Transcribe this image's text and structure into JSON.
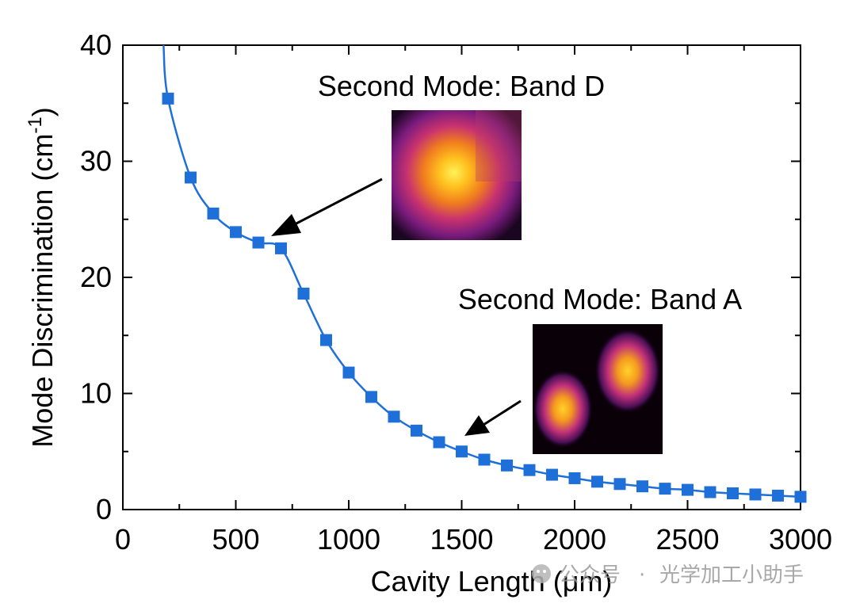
{
  "chart_data": {
    "type": "line",
    "xlabel": "Cavity Length (μm)",
    "ylabel_main": "Mode Discrimination (cm",
    "ylabel_sup": "-1",
    "ylabel_close": ")",
    "xlim": [
      0,
      3000
    ],
    "ylim": [
      0,
      40
    ],
    "xticks": [
      0,
      500,
      1000,
      1500,
      2000,
      2500,
      3000
    ],
    "yticks": [
      0,
      10,
      20,
      30,
      40
    ],
    "grid": false,
    "line_color": "#1f6fd9",
    "marker_color": "#1f6fd9",
    "series": [
      {
        "name": "Mode Discrimination",
        "marker": "square",
        "x": [
          200,
          300,
          400,
          500,
          600,
          700,
          800,
          900,
          1000,
          1100,
          1200,
          1300,
          1400,
          1500,
          1600,
          1700,
          1800,
          1900,
          2000,
          2100,
          2200,
          2300,
          2400,
          2500,
          2600,
          2700,
          2800,
          2900,
          3000
        ],
        "y": [
          35.4,
          28.6,
          25.5,
          23.9,
          23.0,
          22.5,
          18.6,
          14.6,
          11.8,
          9.7,
          8.0,
          6.8,
          5.8,
          5.0,
          4.3,
          3.8,
          3.4,
          3.0,
          2.7,
          2.4,
          2.2,
          2.0,
          1.8,
          1.7,
          1.5,
          1.4,
          1.3,
          1.2,
          1.1
        ]
      }
    ],
    "curve_start": [
      180,
      40.0
    ],
    "annotations": [
      {
        "text": "Second Mode: Band D",
        "points_to": [
          620,
          23.0
        ]
      },
      {
        "text": "Second Mode: Band A",
        "points_to": [
          1500,
          6.5
        ]
      }
    ]
  },
  "watermark": {
    "brand": "公众号",
    "separator": "·",
    "text": "光学加工小助手"
  }
}
